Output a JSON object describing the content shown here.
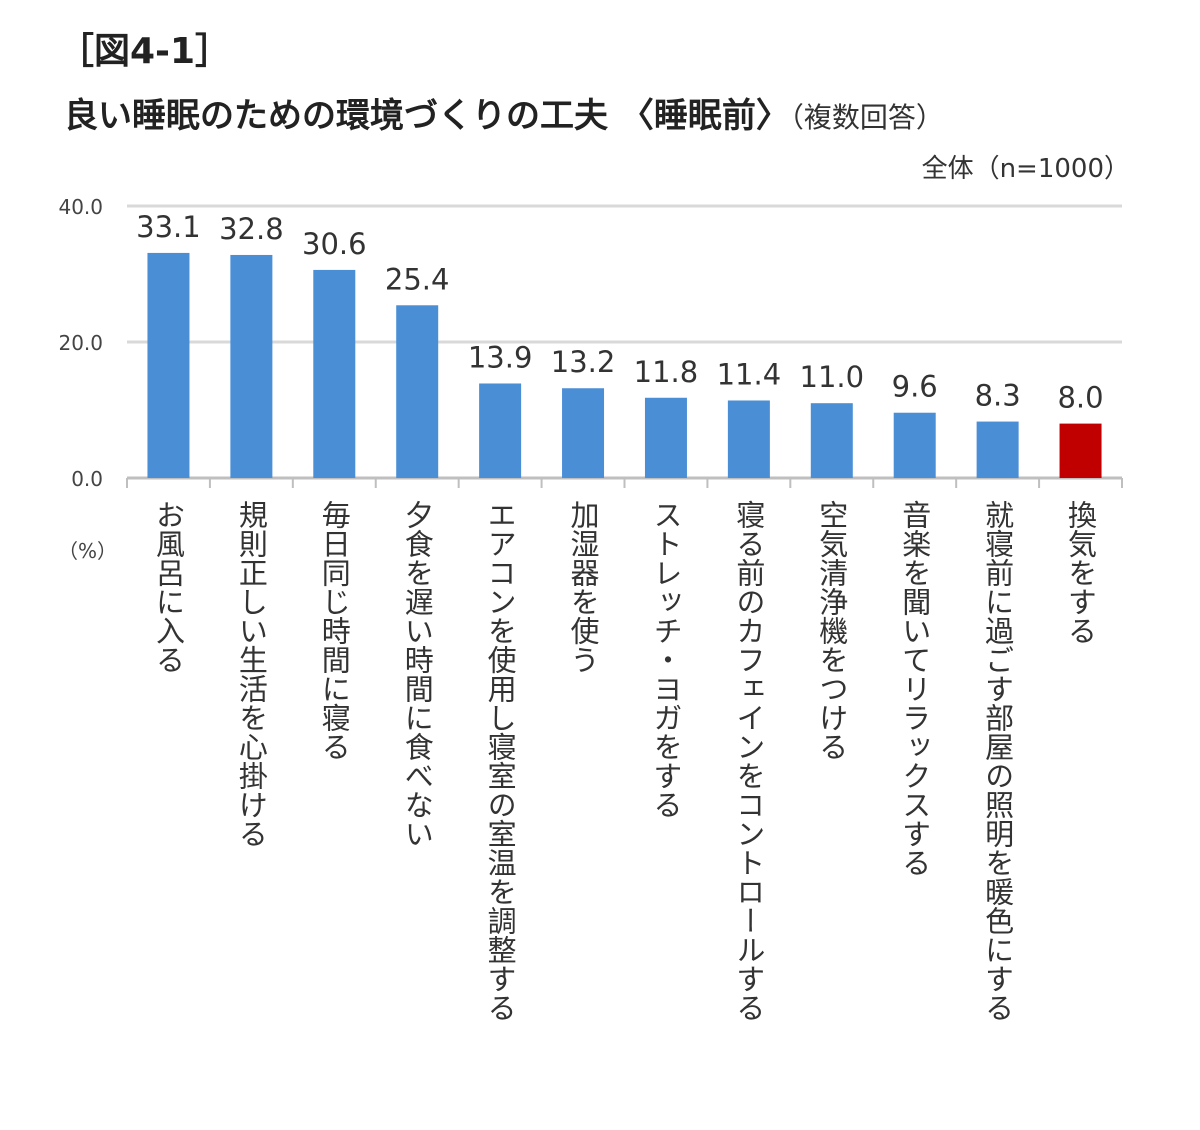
{
  "figure_label": "［図4-1］",
  "title": "良い睡眠のための環境づくりの工夫 〈睡眠前〉",
  "subtitle": "（複数回答）",
  "sample_note": "全体（n=1000）",
  "unit_label": "（%）",
  "colors": {
    "bar": "#4a8ed6",
    "highlight": "#c00000",
    "grid": "#d9d9d9",
    "axis": "#bfbfbf"
  },
  "chart_data": {
    "type": "bar",
    "title": "良い睡眠のための環境づくりの工夫 〈睡眠前〉（複数回答）",
    "ylabel": "（%）",
    "ylim": [
      0,
      40
    ],
    "yticks": [
      0,
      20,
      40
    ],
    "ytick_labels": [
      "0.0",
      "20.0",
      "40.0"
    ],
    "grid": true,
    "highlighted_category": "換気をする",
    "categories": [
      "お風呂に入る",
      "規則正しい生活を心掛ける",
      "毎日同じ時間に寝る",
      "夕食を遅い時間に食べない",
      "エアコンを使用し寝室の室温を調整する",
      "加湿器を使う",
      "ストレッチ・ヨガをする",
      "寝る前のカフェインをコントロールする",
      "空気清浄機をつける",
      "音楽を聞いてリラックスする",
      "就寝前に過ごす部屋の照明を暖色にする",
      "換気をする"
    ],
    "values": [
      33.1,
      32.8,
      30.6,
      25.4,
      13.9,
      13.2,
      11.8,
      11.4,
      11.0,
      9.6,
      8.3,
      8.0
    ],
    "data_labels": [
      "33.1",
      "32.8",
      "30.6",
      "25.4",
      "13.9",
      "13.2",
      "11.8",
      "11.4",
      "11.0",
      "9.6",
      "8.3",
      "8.0"
    ]
  }
}
